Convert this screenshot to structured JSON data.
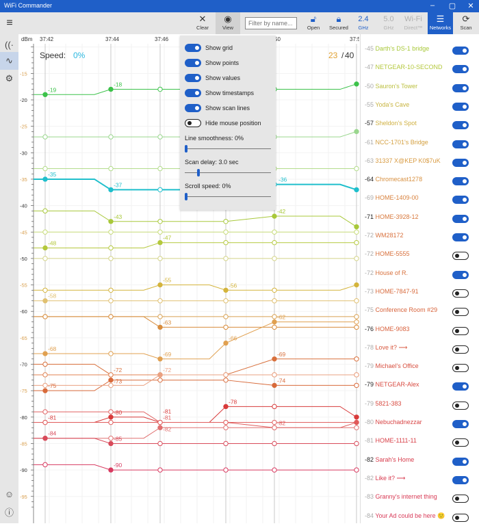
{
  "window": {
    "title": "WiFi Commander",
    "min": "–",
    "max": "▢",
    "close": "✕"
  },
  "toolbar": {
    "menu": "≡",
    "clear": "Clear",
    "view": "View",
    "filter_placeholder": "Filter by name...",
    "open": "Open",
    "secured": "Secured",
    "ghz24_top": "2.4",
    "ghz24_bot": "GHz",
    "ghz50_top": "5.0",
    "ghz50_bot": "GHz",
    "direct_top": "Wi-Fi",
    "direct_bot": "Direct™",
    "networks": "Networks",
    "scan": "Scan"
  },
  "colors": {
    "accent": "#1f5fc8",
    "band_active": "#1f5fc8",
    "disabled": "#b0b0b0"
  },
  "chart": {
    "unit": "dBm",
    "times": [
      "37:42",
      "37:44",
      "37:46",
      "50",
      "37:5"
    ],
    "speed_label": "Speed:",
    "speed_value": "0%",
    "count_active": "23",
    "count_sep": "/",
    "count_total": "40"
  },
  "view_menu": {
    "options": [
      {
        "label": "Show grid",
        "on": true
      },
      {
        "label": "Show points",
        "on": true
      },
      {
        "label": "Show values",
        "on": true
      },
      {
        "label": "Show timestamps",
        "on": true
      },
      {
        "label": "Show scan lines",
        "on": true
      },
      {
        "label": "Hide mouse position",
        "on": false
      }
    ],
    "smoothness_label": "Line smoothness:   0%",
    "smoothness": 0,
    "delay_label": "Scan delay: 3.0 sec",
    "delay_fraction": 0.15,
    "scroll_label": "Scroll speed:   0%",
    "scroll": 0
  },
  "chart_data": {
    "type": "line",
    "ylabel": "dBm",
    "ylim": [
      -97,
      -10
    ],
    "yticks": [
      -15,
      -20,
      -25,
      -30,
      -35,
      -40,
      -45,
      -50,
      -55,
      -60,
      -65,
      -70,
      -75,
      -80,
      -85,
      -90,
      -95
    ],
    "grid": true,
    "scans": [
      "37:42",
      "37:44",
      "37:46",
      "",
      "50",
      "37:5"
    ],
    "series": [
      {
        "color": "#3cc24a",
        "values": [
          -19,
          -18,
          -18,
          -18,
          -18,
          -17
        ]
      },
      {
        "color": "#9ad68e",
        "values": [
          -27,
          -27,
          -27,
          -27,
          -27,
          -26
        ]
      },
      {
        "color": "#b4dc8c",
        "values": [
          -33,
          -33,
          -33,
          -33,
          -33,
          -33
        ]
      },
      {
        "color": "#1fbfcc",
        "values": [
          -35,
          -37,
          -37,
          -36,
          -36,
          -37
        ],
        "bold": true
      },
      {
        "color": "#a8c83a",
        "values": [
          -41,
          -43,
          -43,
          -43,
          -42,
          -44
        ]
      },
      {
        "color": "#c8dc7a",
        "values": [
          -45,
          -45,
          -45,
          -45,
          -45,
          -45
        ]
      },
      {
        "color": "#b4c83c",
        "values": [
          -48,
          -48,
          -47,
          -47,
          -47,
          -47
        ]
      },
      {
        "color": "#d4d48a",
        "values": [
          -50,
          -50,
          -50,
          -50,
          -50,
          -50
        ]
      },
      {
        "color": "#d4b43c",
        "values": [
          -56,
          -56,
          -55,
          -56,
          -56,
          -55
        ]
      },
      {
        "color": "#e0c070",
        "values": [
          -58,
          -58,
          -58,
          -58,
          -58,
          -58
        ]
      },
      {
        "color": "#d8a050",
        "values": [
          -61,
          -61,
          -61,
          -61,
          -61,
          -61
        ]
      },
      {
        "color": "#d88c3c",
        "values": [
          -61,
          -61,
          -63,
          -63,
          -63,
          -63
        ]
      },
      {
        "color": "#e0a050",
        "values": [
          -68,
          -68,
          -69,
          -66,
          -62,
          -62
        ]
      },
      {
        "color": "#d8703c",
        "values": [
          -70,
          -72,
          -72,
          -72,
          -69,
          -69
        ]
      },
      {
        "color": "#e08050",
        "values": [
          -72,
          -72,
          -72,
          -72,
          -72,
          -72
        ]
      },
      {
        "color": "#d86a3a",
        "values": [
          -75,
          -73,
          -73,
          -73,
          -74,
          -74
        ]
      },
      {
        "color": "#eaa080",
        "values": [
          -74,
          -74,
          -72,
          -72,
          -72,
          -72
        ]
      },
      {
        "color": "#e06060",
        "values": [
          -79,
          -79,
          -81,
          -81,
          -81,
          -81
        ]
      },
      {
        "color": "#d83a3a",
        "values": [
          -81,
          -80,
          -81,
          -78,
          -78,
          -80
        ]
      },
      {
        "color": "#e05a5a",
        "values": [
          -81,
          -81,
          -81,
          -81,
          -82,
          -81
        ]
      },
      {
        "color": "#e07070",
        "values": [
          -84,
          -84,
          -82,
          -82,
          -82,
          -82
        ]
      },
      {
        "color": "#d84a5a",
        "values": [
          -84,
          -85,
          -85,
          -85,
          -85,
          -85
        ]
      },
      {
        "color": "#d83a60",
        "values": [
          -89,
          -90,
          -90,
          -90,
          -90,
          -90
        ]
      }
    ]
  },
  "networks": [
    {
      "signal": "-45",
      "name": "Darth's DS-1 bridge",
      "on": true,
      "cur": false,
      "color": "#a8c83a"
    },
    {
      "signal": "-47",
      "name": "NETGEAR-10-SECOND",
      "on": true,
      "cur": false,
      "color": "#b4c83c"
    },
    {
      "signal": "-50",
      "name": "Sauron's Tower",
      "on": true,
      "cur": false,
      "color": "#bcc040"
    },
    {
      "signal": "-55",
      "name": "Yoda's Cave",
      "on": true,
      "cur": false,
      "color": "#c8b440"
    },
    {
      "signal": "-57",
      "name": "Sheldon's Spot",
      "on": true,
      "cur": true,
      "color": "#d0b040"
    },
    {
      "signal": "-61",
      "name": "NCC-1701's Bridge",
      "on": true,
      "cur": false,
      "color": "#d4a040"
    },
    {
      "signal": "-63",
      "name": "31337 X@KEP K0$7uK",
      "on": true,
      "cur": false,
      "color": "#d89a40"
    },
    {
      "signal": "-64",
      "name": "Chromecast1278",
      "on": true,
      "cur": true,
      "color": "#d89040"
    },
    {
      "signal": "-69",
      "name": "HOME-1409-00",
      "on": true,
      "cur": false,
      "color": "#d8803c"
    },
    {
      "signal": "-71",
      "name": "HOME-3928-12",
      "on": true,
      "cur": true,
      "color": "#d8783c"
    },
    {
      "signal": "-72",
      "name": "WM28172",
      "on": true,
      "cur": false,
      "color": "#d8703c"
    },
    {
      "signal": "-72",
      "name": "HOME-5555",
      "on": false,
      "cur": false,
      "color": "#d8703c"
    },
    {
      "signal": "-72",
      "name": "House of R.",
      "on": true,
      "cur": false,
      "color": "#d8703c"
    },
    {
      "signal": "-73",
      "name": "HOME-7847-91",
      "on": false,
      "cur": false,
      "color": "#d86a3c"
    },
    {
      "signal": "-75",
      "name": "Conference Room #29",
      "on": false,
      "cur": false,
      "color": "#d8643c"
    },
    {
      "signal": "-76",
      "name": "HOME-9083",
      "on": false,
      "cur": true,
      "color": "#d8603c"
    },
    {
      "signal": "-78",
      "name": "Love it? ⟶",
      "on": false,
      "cur": false,
      "color": "#d85a40"
    },
    {
      "signal": "-79",
      "name": "Michael's Office",
      "on": false,
      "cur": false,
      "color": "#d85040"
    },
    {
      "signal": "-79",
      "name": "NETGEAR-Alex",
      "on": true,
      "cur": true,
      "color": "#d84a40"
    },
    {
      "signal": "-79",
      "name": "5821-383",
      "on": false,
      "cur": false,
      "color": "#d84a40"
    },
    {
      "signal": "-80",
      "name": "Nebuchadnezzar",
      "on": true,
      "cur": false,
      "color": "#d84444"
    },
    {
      "signal": "-81",
      "name": "HOME-1111-11",
      "on": false,
      "cur": false,
      "color": "#d84048"
    },
    {
      "signal": "-82",
      "name": "Sarah's Home",
      "on": true,
      "cur": true,
      "color": "#d83c4c"
    },
    {
      "signal": "-82",
      "name": "Like it? ⟶",
      "on": true,
      "cur": false,
      "color": "#d83c50"
    },
    {
      "signal": "-83",
      "name": "Granny's internet thing",
      "on": false,
      "cur": false,
      "color": "#d83a54"
    },
    {
      "signal": "-84",
      "name": "Your Ad could be here 🙂",
      "on": false,
      "cur": false,
      "color": "#d83a58"
    }
  ],
  "sidebar": {
    "items": [
      {
        "icon": "wifi-icon"
      },
      {
        "icon": "chart-icon",
        "selected": true
      },
      {
        "icon": "gear-icon"
      }
    ],
    "bottom": [
      {
        "icon": "smiley-icon"
      },
      {
        "icon": "info-icon"
      }
    ]
  }
}
